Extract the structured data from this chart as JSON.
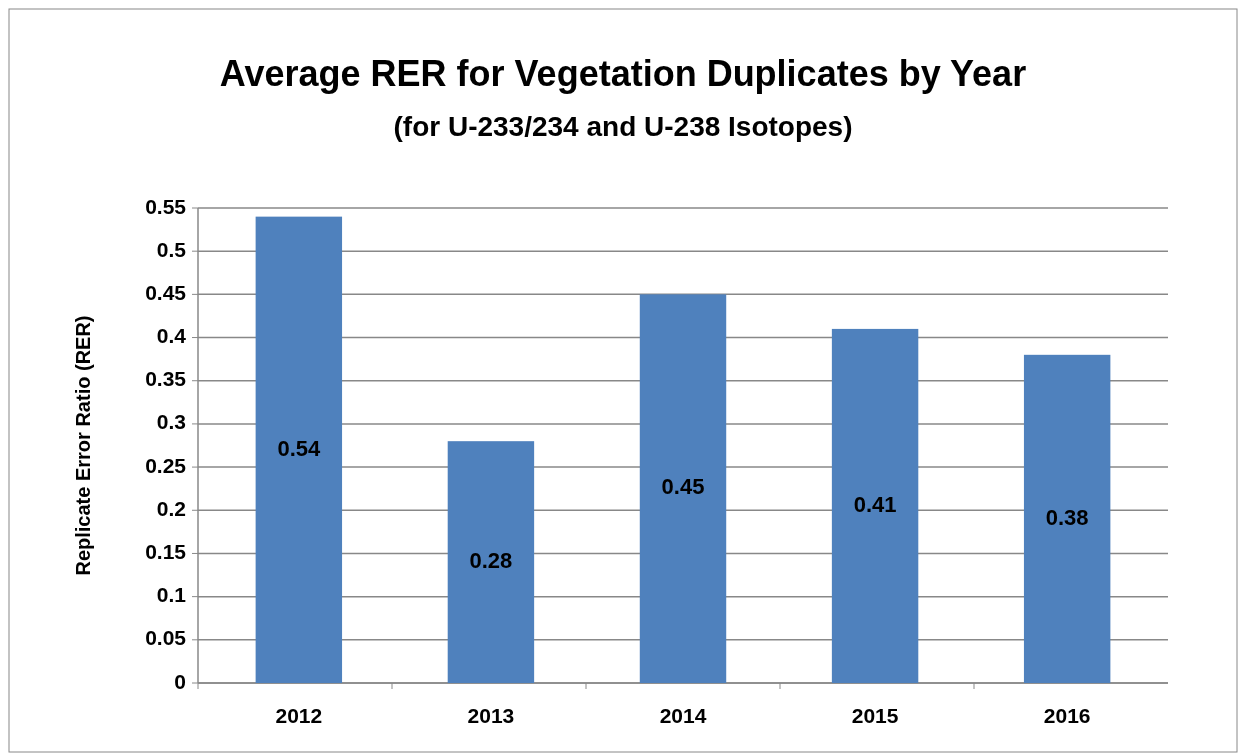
{
  "chart_data": {
    "type": "bar",
    "title": "Average RER for Vegetation Duplicates by Year",
    "subtitle": "(for U-233/234 and U-238 Isotopes)",
    "ylabel": "Replicate Error Ratio (RER)",
    "categories": [
      "2012",
      "2013",
      "2014",
      "2015",
      "2016"
    ],
    "values": [
      0.54,
      0.28,
      0.45,
      0.41,
      0.38
    ],
    "color": "#4f81bd",
    "ylim": [
      0,
      0.55
    ],
    "yticks": [
      0,
      0.05,
      0.1,
      0.15,
      0.2,
      0.25,
      0.3,
      0.35,
      0.4,
      0.45,
      0.5,
      0.55
    ],
    "grid": "y",
    "data_labels": true
  }
}
